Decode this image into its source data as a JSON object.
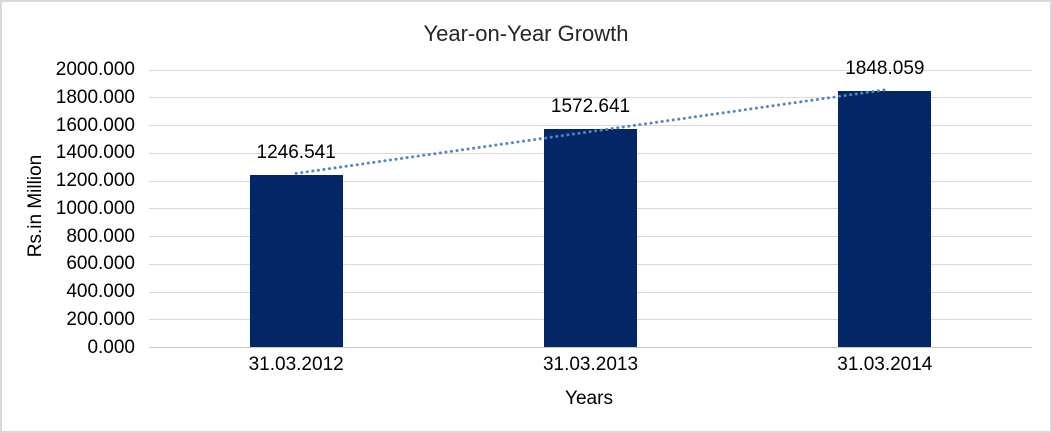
{
  "chart_data": {
    "type": "bar",
    "title": "Year-on-Year Growth",
    "categories": [
      "31.03.2012",
      "31.03.2013",
      "31.03.2014"
    ],
    "values": [
      1246.541,
      1572.641,
      1848.059
    ],
    "data_labels": [
      "1246.541",
      "1572.641",
      "1848.059"
    ],
    "xlabel": "Years",
    "ylabel": "Rs.in Million",
    "ylim": [
      0,
      2000
    ],
    "ytick_step": 200,
    "yticks": [
      "0.000",
      "200.000",
      "400.000",
      "600.000",
      "800.000",
      "1000.000",
      "1200.000",
      "1400.000",
      "1600.000",
      "1800.000",
      "2000.000"
    ],
    "grid": true,
    "legend": "none",
    "trendline": {
      "type": "linear",
      "dash": "dotted"
    }
  },
  "colors": {
    "bar": "#032667",
    "trendline": "#4f86c6",
    "gridline": "#d9d9d9",
    "axis_line": "#c8c8c8",
    "text": "#000000",
    "title_text": "#262626",
    "border": "#d9d9d9",
    "background": "#ffffff"
  }
}
